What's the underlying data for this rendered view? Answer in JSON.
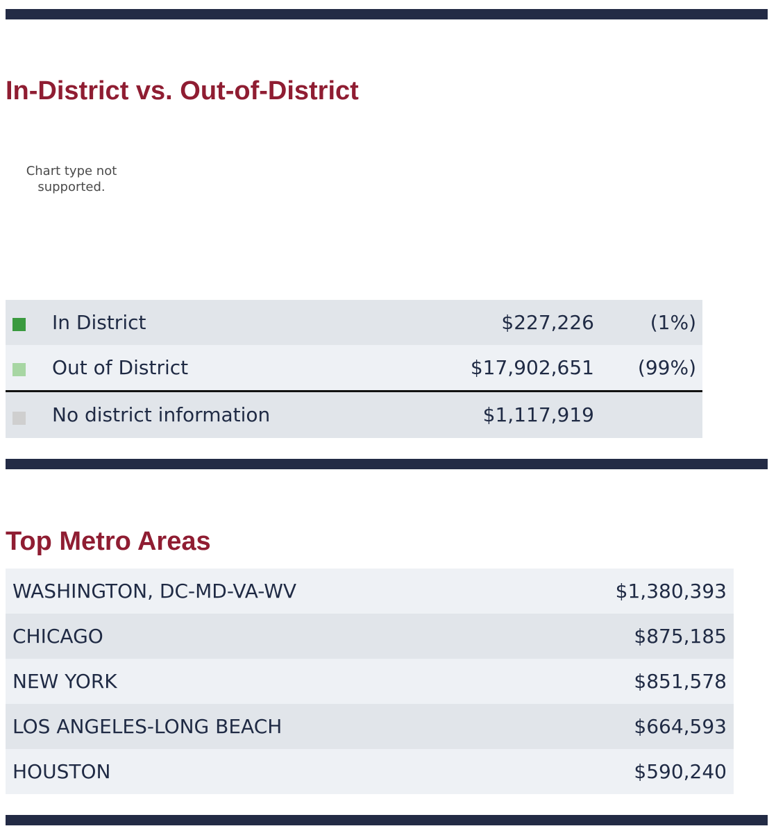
{
  "in_district_section": {
    "title": "In-District vs. Out-of-District",
    "chart_message": "Chart type not supported.",
    "rows": [
      {
        "label": "In District",
        "amount": "$227,226",
        "percent": "(1%)",
        "color": "#3a9a3f"
      },
      {
        "label": "Out of District",
        "amount": "$17,902,651",
        "percent": "(99%)",
        "color": "#a7d6a3"
      }
    ],
    "no_info_row": {
      "label": "No district information",
      "amount": "$1,117,919",
      "color": "#cfcfcf"
    }
  },
  "metro_section": {
    "title": "Top Metro Areas",
    "rows": [
      {
        "name": "WASHINGTON, DC-MD-VA-WV",
        "amount": "$1,380,393"
      },
      {
        "name": "CHICAGO",
        "amount": "$875,185"
      },
      {
        "name": "NEW YORK",
        "amount": "$851,578"
      },
      {
        "name": "LOS ANGELES-LONG BEACH",
        "amount": "$664,593"
      },
      {
        "name": "HOUSTON",
        "amount": "$590,240"
      }
    ]
  },
  "colors": {
    "heading": "#8f1d32",
    "rule": "#232b45",
    "text": "#1f2a44"
  }
}
